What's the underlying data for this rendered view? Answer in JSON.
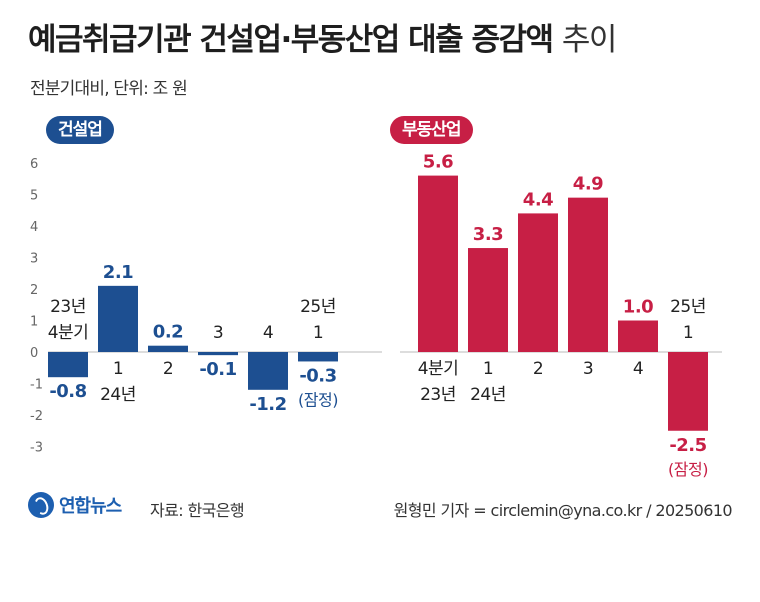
{
  "header": {
    "title": "예금취급기관 건설업·부동산업 대출 증감액",
    "title_suffix": "추이",
    "subtitle": "전분기대비, 단위: 조 원"
  },
  "footer": {
    "logo_text": "연합뉴스",
    "logo_icon": "yonhap-logo-icon",
    "source": "자료: 한국은행",
    "credit": "원형민 기자 = circlemin@yna.co.kr / 20250610"
  },
  "chart_data": [
    {
      "type": "bar",
      "title": "건설업",
      "color": "#1d4f91",
      "categories": [
        [
          "23년",
          "4분기"
        ],
        [
          "1",
          "24년"
        ],
        [
          "2"
        ],
        [
          "3"
        ],
        [
          "4"
        ],
        [
          "25년",
          "1",
          "(잠정)"
        ]
      ],
      "values": [
        -0.8,
        2.1,
        0.2,
        -0.1,
        -1.2,
        -0.3
      ],
      "value_labels": [
        "-0.8",
        "2.1",
        "0.2",
        "-0.1",
        "-1.2",
        "-0.3"
      ],
      "ylim": [
        -3,
        6
      ],
      "yticks": [
        "-3",
        "-2",
        "-1",
        "0",
        "1",
        "2",
        "3",
        "4",
        "5",
        "6"
      ],
      "grid": false
    },
    {
      "type": "bar",
      "title": "부동산업",
      "color": "#c71f45",
      "categories": [
        [
          "4분기",
          "23년"
        ],
        [
          "1",
          "24년"
        ],
        [
          "2"
        ],
        [
          "3"
        ],
        [
          "4"
        ],
        [
          "25년",
          "1",
          "(잠정)"
        ]
      ],
      "values": [
        5.6,
        3.3,
        4.4,
        4.9,
        1.0,
        -2.5
      ],
      "value_labels": [
        "5.6",
        "3.3",
        "4.4",
        "4.9",
        "1.0",
        "-2.5"
      ],
      "ylim": [
        -3,
        6
      ],
      "grid": false
    }
  ]
}
